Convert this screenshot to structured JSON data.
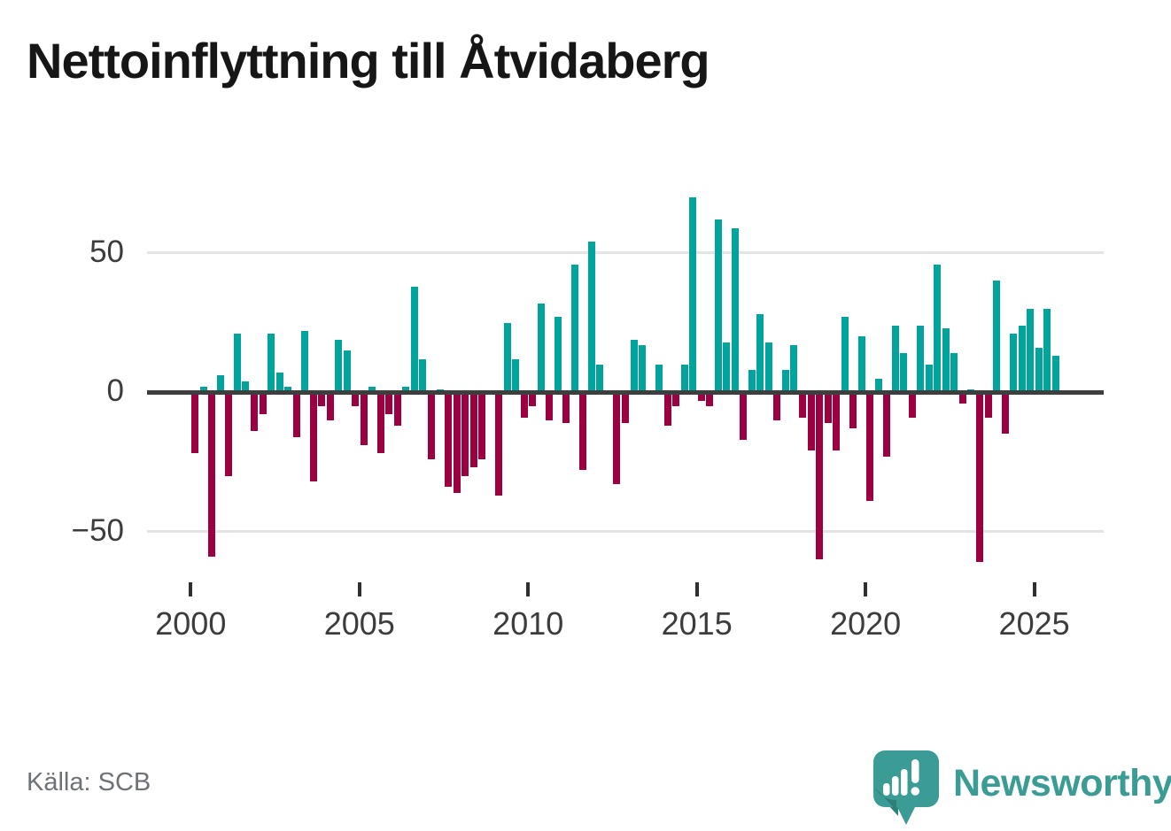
{
  "title": "Nettoinflyttning till Åtvidaberg",
  "source_text": "Källa: SCB",
  "branding": {
    "name": "Newsworthy",
    "icon": "newsworthy-speech-bubble-chart-icon"
  },
  "colors": {
    "positive_bar": "#00A49C",
    "negative_bar": "#9B0041",
    "zero_line": "#3E3E3E",
    "gridline": "#E4E4E4",
    "axis_label": "#3C3C3C",
    "title": "#161616",
    "source_text": "#6E7178",
    "brand_teal": "#3A9C95",
    "brand_icon_shadow": "#2C8078"
  },
  "chart_data": {
    "type": "bar",
    "title": "Nettoinflyttning till Åtvidaberg",
    "x_unit": "quarter",
    "start": "2000Q1",
    "end": "2025Q3",
    "y_tick_values": [
      50,
      0,
      -50
    ],
    "y_tick_labels": [
      "50",
      "0",
      "−50"
    ],
    "x_tick_labels": [
      "2000",
      "2005",
      "2010",
      "2015",
      "2020",
      "2025"
    ],
    "ylim": [
      -70,
      78
    ],
    "grid": "horizontal-only",
    "legend": "none",
    "values_by_year": {
      "2000": [
        -22,
        2,
        -59,
        6
      ],
      "2001": [
        -30,
        21,
        4,
        -14
      ],
      "2002": [
        -8,
        21,
        7,
        2
      ],
      "2003": [
        -16,
        22,
        -32,
        -5
      ],
      "2004": [
        -10,
        19,
        15,
        -5
      ],
      "2005": [
        -19,
        2,
        -22,
        -8
      ],
      "2006": [
        -12,
        2,
        38,
        12
      ],
      "2007": [
        -24,
        1,
        -34,
        -36
      ],
      "2008": [
        -30,
        -27,
        -24,
        0
      ],
      "2009": [
        -37,
        25,
        12,
        -9
      ],
      "2010": [
        -5,
        32,
        -10,
        27
      ],
      "2011": [
        -11,
        46,
        -28,
        54
      ],
      "2012": [
        10,
        0,
        -33,
        -11
      ],
      "2013": [
        19,
        17,
        0,
        10
      ],
      "2014": [
        -12,
        -5,
        10,
        70
      ],
      "2015": [
        -3,
        -5,
        62,
        18
      ],
      "2016": [
        59,
        -17,
        8,
        28
      ],
      "2017": [
        18,
        -10,
        8,
        17
      ],
      "2018": [
        -9,
        -21,
        -60,
        -11
      ],
      "2019": [
        -21,
        27,
        -13,
        20
      ],
      "2020": [
        -39,
        5,
        -23,
        24
      ],
      "2021": [
        14,
        -9,
        24,
        10
      ],
      "2022": [
        46,
        23,
        14,
        -4
      ],
      "2023": [
        1,
        -61,
        -9,
        40
      ],
      "2024": [
        -15,
        21,
        24,
        30
      ],
      "2025": [
        16,
        30,
        13
      ]
    }
  }
}
